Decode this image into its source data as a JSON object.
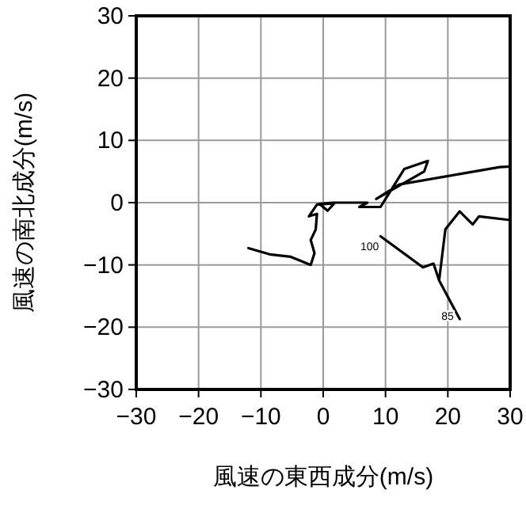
{
  "chart_data": {
    "type": "line",
    "xlabel": "風速の東西成分(m/s)",
    "ylabel": "風速の南北成分(m/s)",
    "xlim": [
      -30,
      30
    ],
    "ylim": [
      -30,
      30
    ],
    "xticks": [
      {
        "value": -30,
        "label": "−30"
      },
      {
        "value": -20,
        "label": "−20"
      },
      {
        "value": -10,
        "label": "−10"
      },
      0,
      10,
      20,
      30
    ],
    "yticks": [
      {
        "value": -30,
        "label": "−30"
      },
      {
        "value": -20,
        "label": "−20"
      },
      {
        "value": -10,
        "label": "−10"
      },
      0,
      10,
      20,
      30
    ],
    "grid": true,
    "series": [
      {
        "color": "#000000",
        "x": [
          -12,
          -8.6,
          -5.2,
          -2,
          -1.4,
          -2,
          -1.2,
          -1,
          -2.3,
          -1,
          1.8,
          0.7,
          -0.6,
          1.5,
          7.1,
          5.8,
          9.2,
          13,
          16.8,
          16.2,
          8.5,
          12.2,
          28.3,
          30,
          null,
          30,
          25,
          24,
          21.9,
          19.6,
          18.6,
          21.9,
          null,
          9.2,
          16,
          17.7,
          18.6
        ],
        "values": [
          -7.3,
          -8.3,
          -8.7,
          -10,
          -8.1,
          -6,
          -4.3,
          -1.8,
          -2.2,
          -0.3,
          -0.1,
          -1.3,
          -0.2,
          0,
          0,
          -0.7,
          -0.7,
          5.4,
          6.7,
          5,
          0.6,
          2.9,
          5.7,
          5.8,
          null,
          -2.8,
          -2.2,
          -3.5,
          -1.4,
          -4.3,
          -12.5,
          -18.7,
          null,
          -5.4,
          -10.4,
          -9.8,
          -12.5
        ]
      }
    ],
    "annotations": [
      {
        "text": "100",
        "x": 9.2,
        "y": -5.4
      },
      {
        "text": "85",
        "x": 21.2,
        "y": -16.5
      }
    ]
  }
}
